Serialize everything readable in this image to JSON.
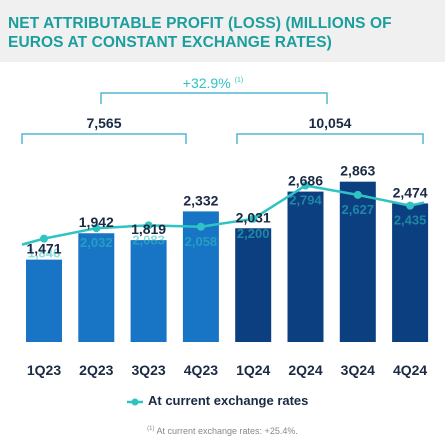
{
  "title": "NET ATTRIBUTABLE PROFIT (LOSS) (MILLIONS OF EUROS AT CONSTANT EXCHANGE RATES)",
  "colors": {
    "bar_2023": "#1874c4",
    "bar_2024": "#0b3f80",
    "line": "#2fc3c3",
    "bracket": "#52b7d4",
    "title": "#1a9e9e",
    "label": "#1a2a44",
    "growth": "#2fc3c3"
  },
  "brackets": {
    "year_2023": "7,565",
    "year_2024": "10,054",
    "growth": "+32.9%",
    "growth_note": "(1)"
  },
  "chart_data": {
    "type": "bar",
    "categories": [
      "1Q23",
      "2Q23",
      "3Q23",
      "4Q23",
      "1Q24",
      "2Q24",
      "3Q24",
      "4Q24"
    ],
    "series": [
      {
        "name": "",
        "values": [
          1471,
          1942,
          1819,
          2332,
          2031,
          2686,
          2863,
          2474
        ],
        "labels": [
          "1,471",
          "1,942",
          "1,819",
          "2,332",
          "2,031",
          "2,686",
          "2,863",
          "2,474"
        ]
      },
      {
        "name": "At current exchange rates",
        "type": "line",
        "values": [
          1846,
          2032,
          2083,
          2058,
          2200,
          2794,
          2627,
          2435
        ],
        "labels": [
          "1,846",
          "2,032",
          "2,083",
          "2,058",
          "2,200",
          "2,794",
          "2,627",
          "2,435"
        ]
      }
    ],
    "legend": "bottom-center"
  },
  "legend_label": "At current exchange rates",
  "footnote": {
    "marker": "(1)",
    "text": "At current exchange rates: +25.4%."
  }
}
